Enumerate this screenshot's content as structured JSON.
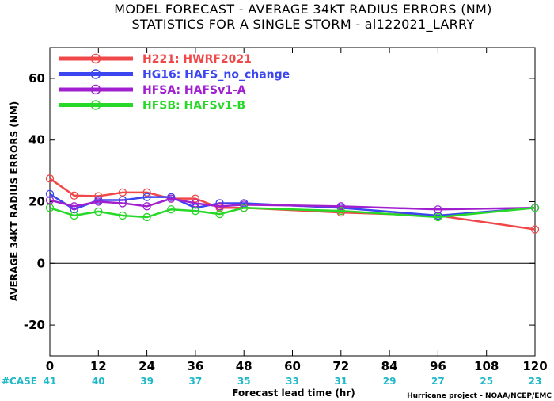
{
  "chart_data": {
    "type": "line",
    "title_line1": "MODEL FORECAST - AVERAGE 34KT RADIUS ERRORS (NM)",
    "title_line2": "STATISTICS FOR A SINGLE STORM - al122021_LARRY",
    "ylabel": "AVERAGE 34KT RADIUS ERRORS (NM)",
    "xlabel": "Forecast lead time (hr)",
    "credit": "Hurricane project - NOAA/NCEP/EMC",
    "ylim": [
      -30,
      70
    ],
    "xlim": [
      0,
      120
    ],
    "yticks": [
      -20,
      0,
      20,
      40,
      60
    ],
    "xticks": [
      0,
      12,
      24,
      36,
      48,
      60,
      72,
      84,
      96,
      108,
      120
    ],
    "case_label": "#CASE",
    "cases": [
      {
        "x": 0,
        "n": "41"
      },
      {
        "x": 12,
        "n": "40"
      },
      {
        "x": 24,
        "n": "39"
      },
      {
        "x": 36,
        "n": "37"
      },
      {
        "x": 48,
        "n": "35"
      },
      {
        "x": 60,
        "n": "33"
      },
      {
        "x": 72,
        "n": "31"
      },
      {
        "x": 84,
        "n": "29"
      },
      {
        "x": 96,
        "n": "27"
      },
      {
        "x": 108,
        "n": "25"
      },
      {
        "x": 120,
        "n": "23"
      }
    ],
    "x": [
      0,
      6,
      12,
      18,
      24,
      30,
      36,
      42,
      48,
      72,
      96,
      120
    ],
    "series": [
      {
        "name": "H221: HWRF2021",
        "color": "#f04848",
        "values": [
          27.5,
          22,
          21.8,
          23,
          23,
          21,
          21,
          18,
          18,
          16.5,
          15.5,
          11
        ]
      },
      {
        "name": "HG16: HAFS_no_change",
        "color": "#3c46f0",
        "values": [
          22.5,
          17.5,
          20.5,
          20.5,
          21.5,
          21.5,
          18,
          19.5,
          19.5,
          18,
          15.5,
          18
        ]
      },
      {
        "name": "HFSA: HAFSv1-A",
        "color": "#a020d0",
        "values": [
          20.5,
          18.5,
          20,
          19.5,
          18.5,
          21,
          19.5,
          18.5,
          19,
          18.5,
          17.5,
          18
        ]
      },
      {
        "name": "HFSB: HAFSv1-B",
        "color": "#28d828",
        "values": [
          18,
          15.5,
          16.8,
          15.5,
          15,
          17.5,
          17,
          16,
          18,
          17,
          15,
          18
        ]
      }
    ],
    "legend_placement": "top-left",
    "grid": false
  }
}
